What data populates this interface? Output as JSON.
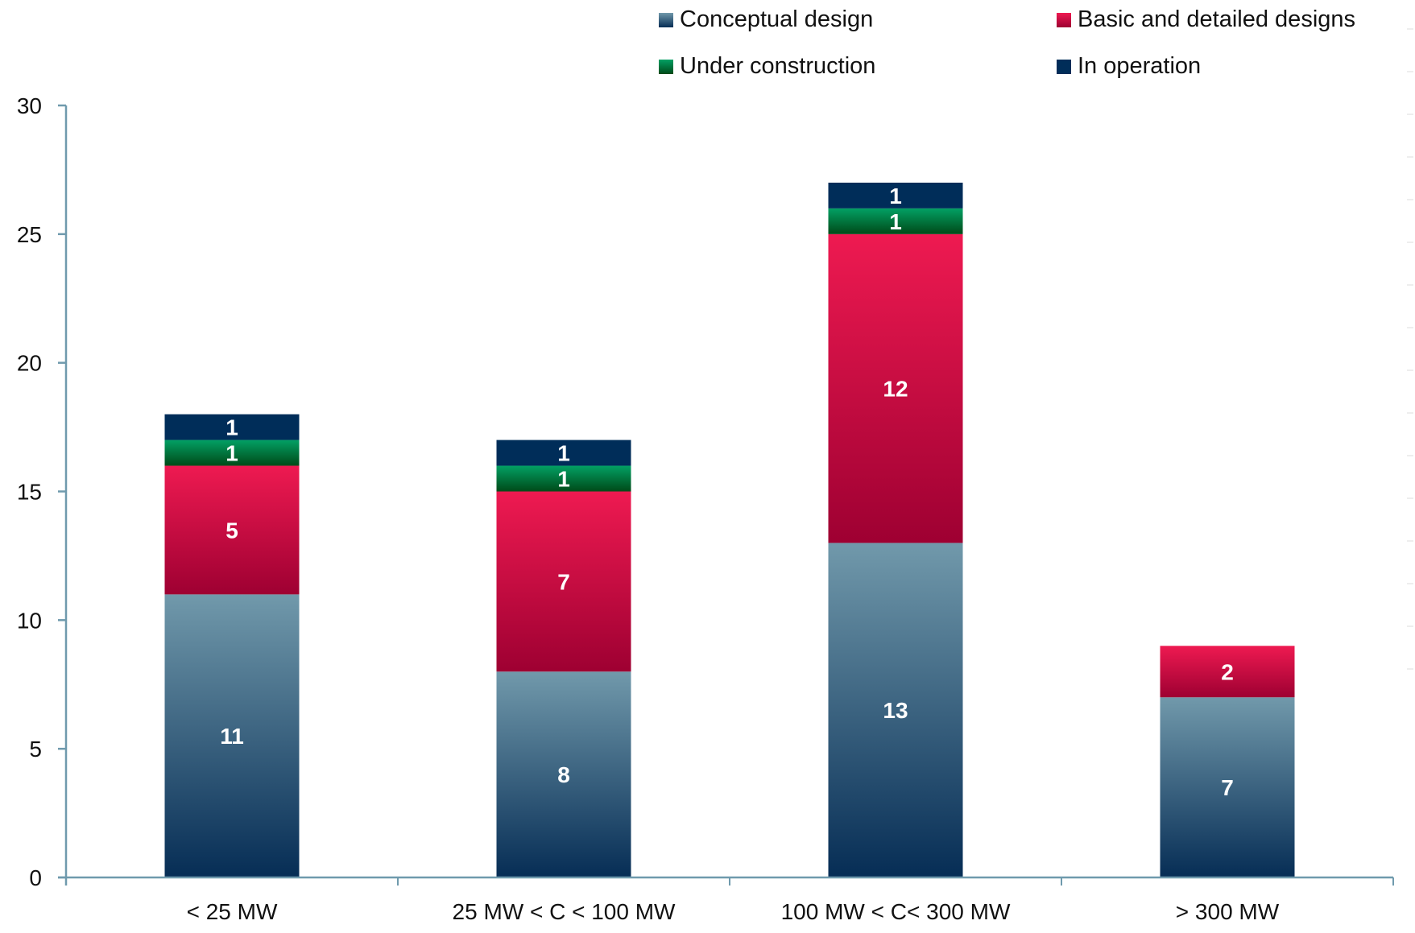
{
  "chart_data": {
    "type": "bar",
    "stacked": true,
    "title": "",
    "xlabel": "",
    "ylabel": "",
    "ylim": [
      0,
      30
    ],
    "yticks": [
      0,
      5,
      10,
      15,
      20,
      25,
      30
    ],
    "grid": false,
    "legend_position": "top-right",
    "categories": [
      "< 25 MW",
      "25 MW < C < 100 MW",
      "100 MW < C< 300 MW",
      "> 300 MW"
    ],
    "series": [
      {
        "name": "Conceptual design",
        "values": [
          11,
          8,
          13,
          7
        ],
        "color_top": "#7199ab",
        "color_bottom": "#062d55"
      },
      {
        "name": "Basic and detailed designs",
        "values": [
          5,
          7,
          12,
          2
        ],
        "color_top": "#ee1a51",
        "color_bottom": "#9e0032"
      },
      {
        "name": "Under construction",
        "values": [
          1,
          1,
          1,
          0
        ],
        "color_top": "#02a064",
        "color_bottom": "#004a18"
      },
      {
        "name": "In operation",
        "values": [
          1,
          1,
          1,
          0
        ],
        "color_top": "#002d59",
        "color_bottom": "#002d59"
      }
    ],
    "axis_color": "#6f9aad"
  }
}
